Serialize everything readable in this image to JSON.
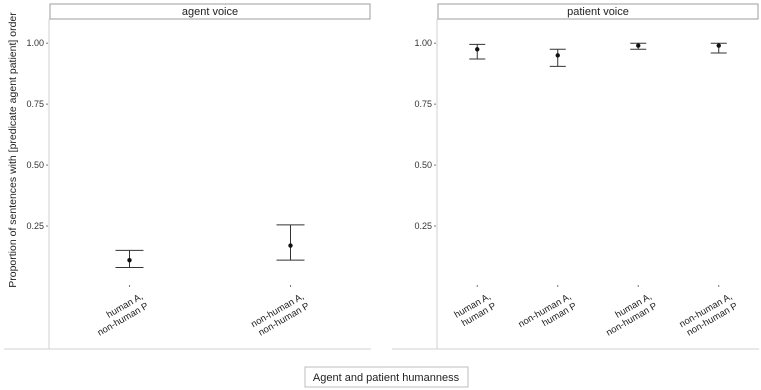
{
  "chart_data": {
    "type": "errorbar",
    "xlabel": "Agent and patient humanness",
    "ylabel": "Proportion of sentences with [predicate agent patient] order",
    "ylim": [
      0,
      1.05
    ],
    "yticks": [
      0.25,
      0.5,
      0.75,
      1.0
    ],
    "ytick_labels": [
      "0.25",
      "0.50",
      "0.75",
      "1.00"
    ],
    "grid": false,
    "panels": [
      {
        "strip": "agent voice",
        "categories": [
          {
            "lines": [
              "human A,",
              "non-human P"
            ],
            "mean": 0.11,
            "lower": 0.08,
            "upper": 0.15
          },
          {
            "lines": [
              "non-human A,",
              "non-human P"
            ],
            "mean": 0.17,
            "lower": 0.11,
            "upper": 0.255
          }
        ]
      },
      {
        "strip": "patient voice",
        "categories": [
          {
            "lines": [
              "human A,",
              "human P"
            ],
            "mean": 0.975,
            "lower": 0.935,
            "upper": 0.995
          },
          {
            "lines": [
              "non-human A,",
              "human P"
            ],
            "mean": 0.95,
            "lower": 0.905,
            "upper": 0.975
          },
          {
            "lines": [
              "human A,",
              "non-human P"
            ],
            "mean": 0.99,
            "lower": 0.975,
            "upper": 1.0
          },
          {
            "lines": [
              "non-human A,",
              "non-human P"
            ],
            "mean": 0.99,
            "lower": 0.96,
            "upper": 1.0
          }
        ]
      }
    ]
  }
}
